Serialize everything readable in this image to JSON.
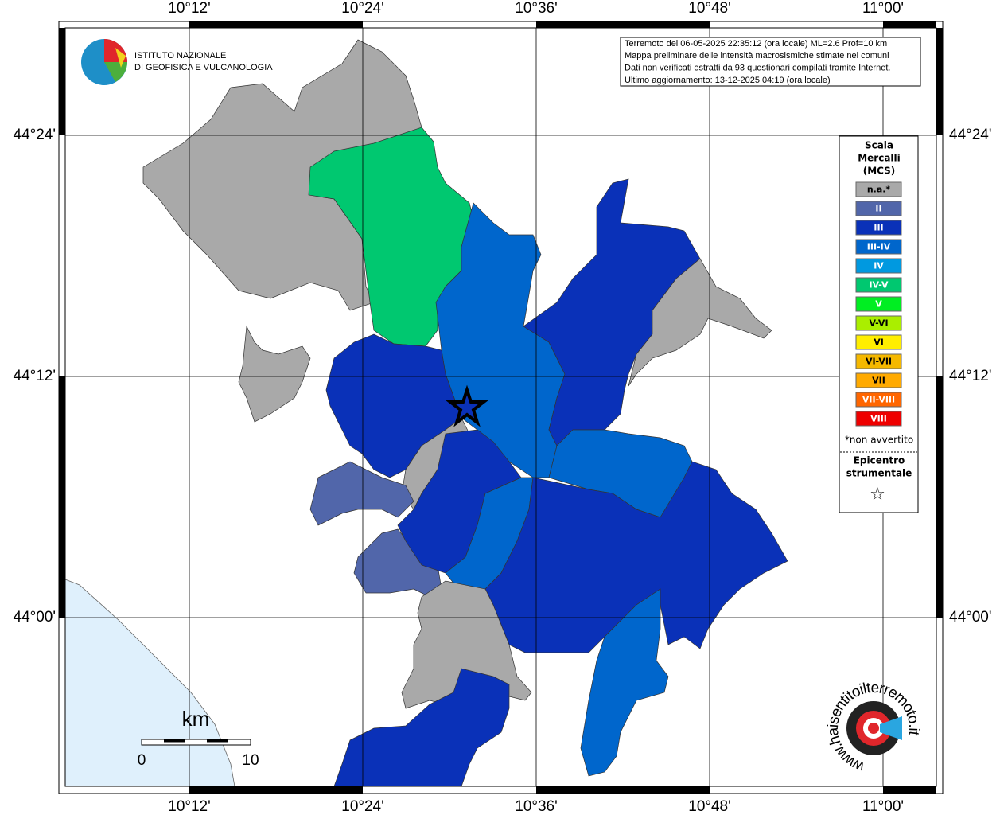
{
  "logo": {
    "line1": "ISTITUTO NAZIONALE",
    "line2": "DI GEOFISICA E VULCANOLOGIA"
  },
  "info_box": {
    "lines": [
      "Terremoto del 06-05-2025 22:35:12 (ora locale) ML=2.6 Prof=10 km",
      "Mappa preliminare delle intensità macrosismiche stimate nei comuni",
      "Dati non verificati estratti da 93 questionari compilati tramite Internet.",
      "Ultimo aggiornamento: 13-12-2025 04:19 (ora locale)"
    ]
  },
  "axes": {
    "longitude_labels": [
      "10°12'",
      "10°24'",
      "10°36'",
      "10°48'",
      "11°00'"
    ],
    "latitude_labels": [
      "44°24'",
      "44°12'",
      "44°00'"
    ]
  },
  "legend": {
    "title_lines": [
      "Scala",
      "Mercalli",
      "(MCS)"
    ],
    "items": [
      {
        "label": "n.a.*",
        "color": "#a9a9a9"
      },
      {
        "label": "II",
        "color": "#5166aa"
      },
      {
        "label": "III",
        "color": "#0a31b8"
      },
      {
        "label": "III-IV",
        "color": "#0066cc"
      },
      {
        "label": "IV",
        "color": "#0099e0"
      },
      {
        "label": "IV-V",
        "color": "#00c870"
      },
      {
        "label": "V",
        "color": "#00ee22"
      },
      {
        "label": "V-VI",
        "color": "#aaee00"
      },
      {
        "label": "VI",
        "color": "#ffee00"
      },
      {
        "label": "VI-VII",
        "color": "#f5b800"
      },
      {
        "label": "VII",
        "color": "#ffaa00"
      },
      {
        "label": "VII-VIII",
        "color": "#ff6600"
      },
      {
        "label": "VIII",
        "color": "#ee0000"
      }
    ],
    "note": "*non avvertito",
    "epicenter_lines": [
      "Epicentro",
      "strumentale"
    ],
    "epicenter_symbol": "☆"
  },
  "scale_bar": {
    "unit": "km",
    "labels": [
      "0",
      "10"
    ]
  },
  "site_logo": {
    "text": "www.haisentitoilterremoto.it"
  }
}
